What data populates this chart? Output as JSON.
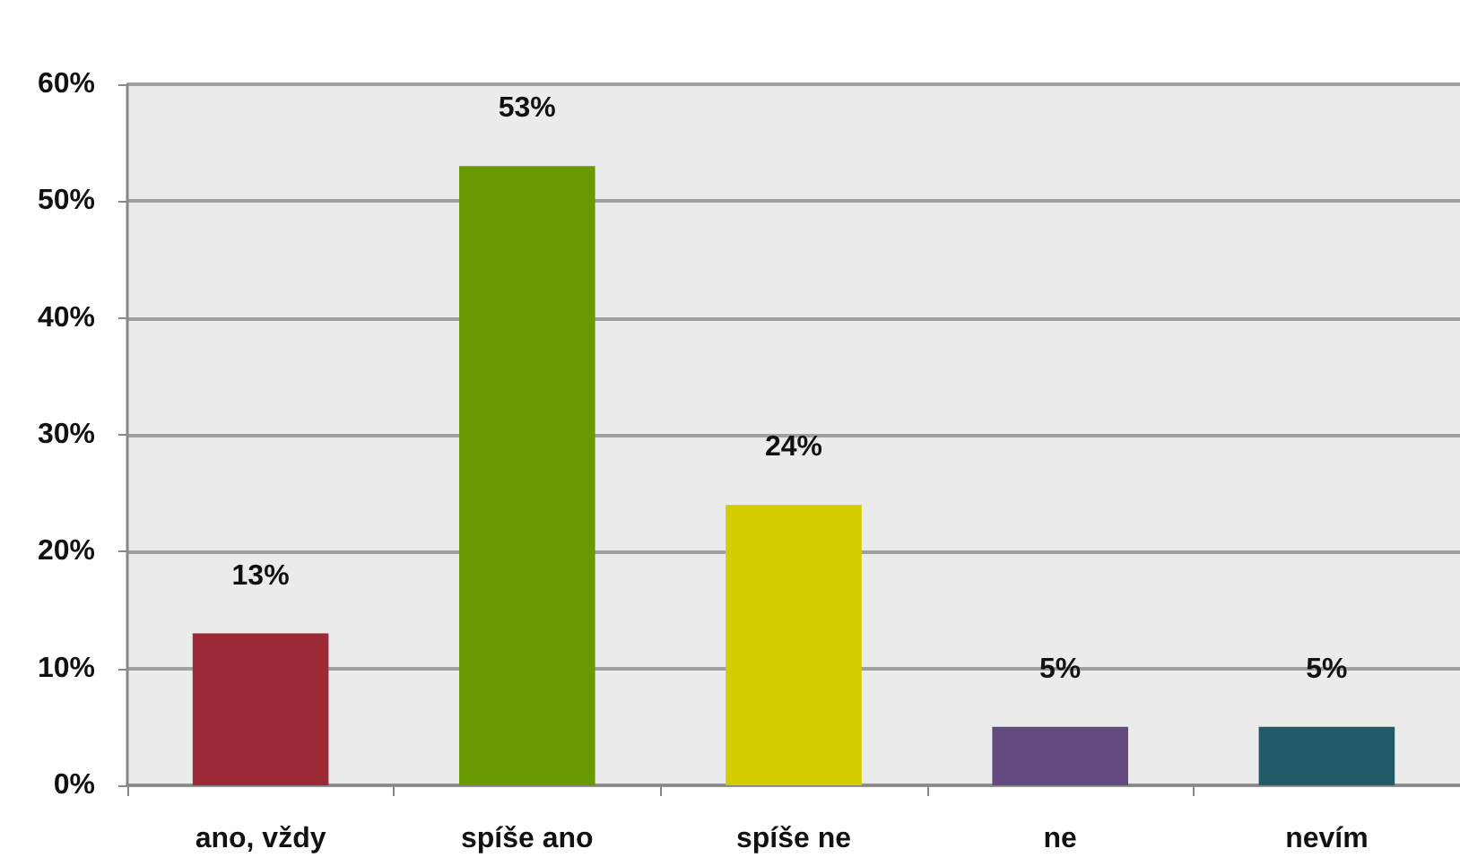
{
  "chart_data": {
    "type": "bar",
    "categories": [
      "ano, vždy",
      "spíše ano",
      "spíše ne",
      "ne",
      "nevím"
    ],
    "values": [
      13,
      53,
      24,
      5,
      5
    ],
    "colors": [
      "#9b2a36",
      "#689a00",
      "#d4cc00",
      "#624a7e",
      "#225a68"
    ],
    "ylim": [
      0,
      60
    ],
    "yticks": [
      {
        "value": 0,
        "label": "0%"
      },
      {
        "value": 10,
        "label": "10%"
      },
      {
        "value": 20,
        "label": "20%"
      },
      {
        "value": 30,
        "label": "30%"
      },
      {
        "value": 40,
        "label": "40%"
      },
      {
        "value": 50,
        "label": "50%"
      },
      {
        "value": 60,
        "label": "60%"
      }
    ],
    "value_labels": [
      "13%",
      "53%",
      "24%",
      "5%",
      "5%"
    ],
    "grid": "y"
  }
}
